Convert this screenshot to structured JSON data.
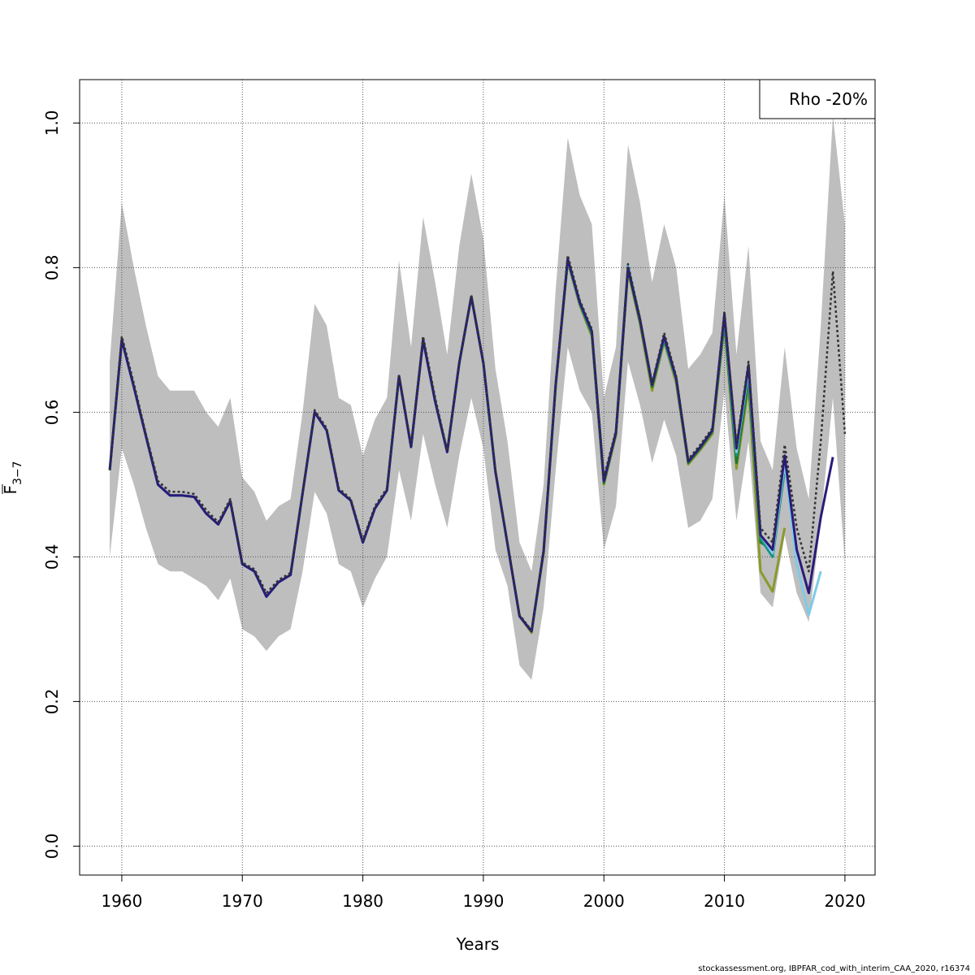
{
  "chart_data": {
    "type": "line",
    "xlabel": "Years",
    "ylabel": "F",
    "ylabel_subscript": "3−7",
    "xlim": [
      1956.5,
      2022.5
    ],
    "ylim": [
      -0.04,
      1.06
    ],
    "xticks": [
      "1960",
      "1970",
      "1980",
      "1990",
      "2000",
      "2010",
      "2020"
    ],
    "yticks": [
      "0.0",
      "0.2",
      "0.4",
      "0.6",
      "0.8",
      "1.0"
    ],
    "grid": true,
    "legend": {
      "text": "Rho -20%",
      "position": "top-right"
    },
    "confidence_band": {
      "color": "#bebebe",
      "x": [
        1959,
        1960,
        1961,
        1962,
        1963,
        1964,
        1965,
        1966,
        1967,
        1968,
        1969,
        1970,
        1971,
        1972,
        1973,
        1974,
        1975,
        1976,
        1977,
        1978,
        1979,
        1980,
        1981,
        1982,
        1983,
        1984,
        1985,
        1986,
        1987,
        1988,
        1989,
        1990,
        1991,
        1992,
        1993,
        1994,
        1995,
        1996,
        1997,
        1998,
        1999,
        2000,
        2001,
        2002,
        2003,
        2004,
        2005,
        2006,
        2007,
        2008,
        2009,
        2010,
        2011,
        2012,
        2013,
        2014,
        2015,
        2016,
        2017,
        2018,
        2019,
        2020
      ],
      "upper": [
        0.67,
        0.89,
        0.8,
        0.72,
        0.65,
        0.63,
        0.63,
        0.63,
        0.6,
        0.58,
        0.62,
        0.51,
        0.49,
        0.45,
        0.47,
        0.48,
        0.6,
        0.75,
        0.72,
        0.62,
        0.61,
        0.54,
        0.59,
        0.62,
        0.81,
        0.69,
        0.87,
        0.78,
        0.68,
        0.83,
        0.93,
        0.84,
        0.66,
        0.56,
        0.42,
        0.38,
        0.5,
        0.77,
        0.98,
        0.9,
        0.86,
        0.62,
        0.69,
        0.97,
        0.89,
        0.78,
        0.86,
        0.8,
        0.66,
        0.68,
        0.71,
        0.9,
        0.68,
        0.83,
        0.56,
        0.52,
        0.69,
        0.55,
        0.48,
        0.72,
        1.01,
        0.86
      ],
      "lower": [
        0.4,
        0.55,
        0.5,
        0.44,
        0.39,
        0.38,
        0.38,
        0.37,
        0.36,
        0.34,
        0.37,
        0.3,
        0.29,
        0.27,
        0.29,
        0.3,
        0.38,
        0.49,
        0.46,
        0.39,
        0.38,
        0.33,
        0.37,
        0.4,
        0.52,
        0.45,
        0.57,
        0.5,
        0.44,
        0.54,
        0.62,
        0.55,
        0.41,
        0.36,
        0.25,
        0.23,
        0.33,
        0.52,
        0.69,
        0.63,
        0.6,
        0.41,
        0.47,
        0.67,
        0.61,
        0.53,
        0.59,
        0.54,
        0.44,
        0.45,
        0.48,
        0.63,
        0.45,
        0.56,
        0.35,
        0.33,
        0.43,
        0.35,
        0.31,
        0.45,
        0.62,
        0.39
      ]
    },
    "series": [
      {
        "color": "#333333",
        "dashed": true,
        "start": 1959,
        "values": [
          0.52,
          0.705,
          0.64,
          0.57,
          0.505,
          0.49,
          0.49,
          0.487,
          0.465,
          0.448,
          0.48,
          0.392,
          0.383,
          0.35,
          0.368,
          0.378,
          0.49,
          0.603,
          0.578,
          0.495,
          0.48,
          0.423,
          0.47,
          0.495,
          0.652,
          0.555,
          0.705,
          0.62,
          0.547,
          0.67,
          0.762,
          0.67,
          0.52,
          0.42,
          0.32,
          0.298,
          0.41,
          0.64,
          0.817,
          0.755,
          0.715,
          0.51,
          0.575,
          0.805,
          0.73,
          0.64,
          0.71,
          0.65,
          0.535,
          0.555,
          0.578,
          0.74,
          0.555,
          0.67,
          0.44,
          0.42,
          0.555,
          0.44,
          0.38,
          0.56,
          0.795,
          0.57
        ]
      },
      {
        "color": "#2a1a7a",
        "dashed": false,
        "start": 1959,
        "values": [
          0.52,
          0.7,
          0.635,
          0.567,
          0.5,
          0.485,
          0.485,
          0.483,
          0.46,
          0.445,
          0.477,
          0.39,
          0.38,
          0.345,
          0.365,
          0.375,
          0.488,
          0.6,
          0.575,
          0.492,
          0.478,
          0.42,
          0.467,
          0.492,
          0.65,
          0.552,
          0.7,
          0.615,
          0.545,
          0.668,
          0.76,
          0.668,
          0.518,
          0.418,
          0.318,
          0.297,
          0.408,
          0.638,
          0.812,
          0.752,
          0.712,
          0.505,
          0.572,
          0.8,
          0.728,
          0.638,
          0.705,
          0.647,
          0.532,
          0.552,
          0.575,
          0.735,
          0.55,
          0.665,
          0.43,
          0.41,
          0.54,
          0.41,
          0.35,
          0.455,
          0.538
        ]
      },
      {
        "color": "#7ecbe8",
        "dashed": false,
        "start": 1959,
        "values": [
          0.52,
          0.7,
          0.635,
          0.567,
          0.5,
          0.485,
          0.485,
          0.483,
          0.46,
          0.445,
          0.477,
          0.39,
          0.38,
          0.345,
          0.365,
          0.375,
          0.488,
          0.6,
          0.575,
          0.492,
          0.478,
          0.42,
          0.467,
          0.492,
          0.65,
          0.552,
          0.7,
          0.615,
          0.545,
          0.668,
          0.76,
          0.668,
          0.518,
          0.418,
          0.318,
          0.297,
          0.408,
          0.638,
          0.812,
          0.752,
          0.712,
          0.505,
          0.572,
          0.805,
          0.728,
          0.638,
          0.705,
          0.647,
          0.532,
          0.552,
          0.575,
          0.735,
          0.545,
          0.66,
          0.43,
          0.405,
          0.53,
          0.39,
          0.32,
          0.38
        ]
      },
      {
        "color": "#1a9080",
        "dashed": false,
        "start": 1959,
        "values": [
          0.52,
          0.7,
          0.635,
          0.567,
          0.5,
          0.485,
          0.485,
          0.483,
          0.46,
          0.445,
          0.477,
          0.39,
          0.38,
          0.345,
          0.365,
          0.375,
          0.488,
          0.6,
          0.575,
          0.492,
          0.478,
          0.42,
          0.467,
          0.492,
          0.65,
          0.552,
          0.7,
          0.615,
          0.545,
          0.668,
          0.76,
          0.668,
          0.518,
          0.418,
          0.318,
          0.297,
          0.408,
          0.638,
          0.81,
          0.75,
          0.71,
          0.505,
          0.572,
          0.8,
          0.728,
          0.638,
          0.702,
          0.645,
          0.532,
          0.552,
          0.575,
          0.73,
          0.54,
          0.655,
          0.425,
          0.4,
          0.52
        ]
      },
      {
        "color": "#1e7a2e",
        "dashed": false,
        "start": 1959,
        "values": [
          0.52,
          0.7,
          0.635,
          0.567,
          0.5,
          0.485,
          0.485,
          0.483,
          0.46,
          0.445,
          0.477,
          0.39,
          0.38,
          0.345,
          0.365,
          0.375,
          0.488,
          0.6,
          0.575,
          0.492,
          0.478,
          0.42,
          0.467,
          0.492,
          0.65,
          0.552,
          0.7,
          0.615,
          0.545,
          0.668,
          0.76,
          0.668,
          0.518,
          0.418,
          0.318,
          0.297,
          0.408,
          0.638,
          0.81,
          0.75,
          0.708,
          0.502,
          0.57,
          0.798,
          0.725,
          0.635,
          0.7,
          0.645,
          0.53,
          0.55,
          0.573,
          0.725,
          0.53,
          0.645,
          0.42,
          0.41
        ]
      },
      {
        "color": "#8a9a2a",
        "dashed": false,
        "start": 1959,
        "values": [
          0.52,
          0.7,
          0.635,
          0.567,
          0.5,
          0.485,
          0.485,
          0.483,
          0.46,
          0.445,
          0.477,
          0.39,
          0.38,
          0.345,
          0.365,
          0.375,
          0.488,
          0.6,
          0.575,
          0.492,
          0.478,
          0.42,
          0.467,
          0.492,
          0.65,
          0.552,
          0.7,
          0.615,
          0.545,
          0.668,
          0.76,
          0.668,
          0.518,
          0.418,
          0.318,
          0.295,
          0.405,
          0.635,
          0.808,
          0.748,
          0.705,
          0.5,
          0.568,
          0.795,
          0.722,
          0.63,
          0.698,
          0.64,
          0.528,
          0.548,
          0.57,
          0.72,
          0.522,
          0.635,
          0.38,
          0.352,
          0.44
        ]
      }
    ]
  },
  "footer": "stockassessment.org, IBPFAR_cod_with_interim_CAA_2020, r16374"
}
